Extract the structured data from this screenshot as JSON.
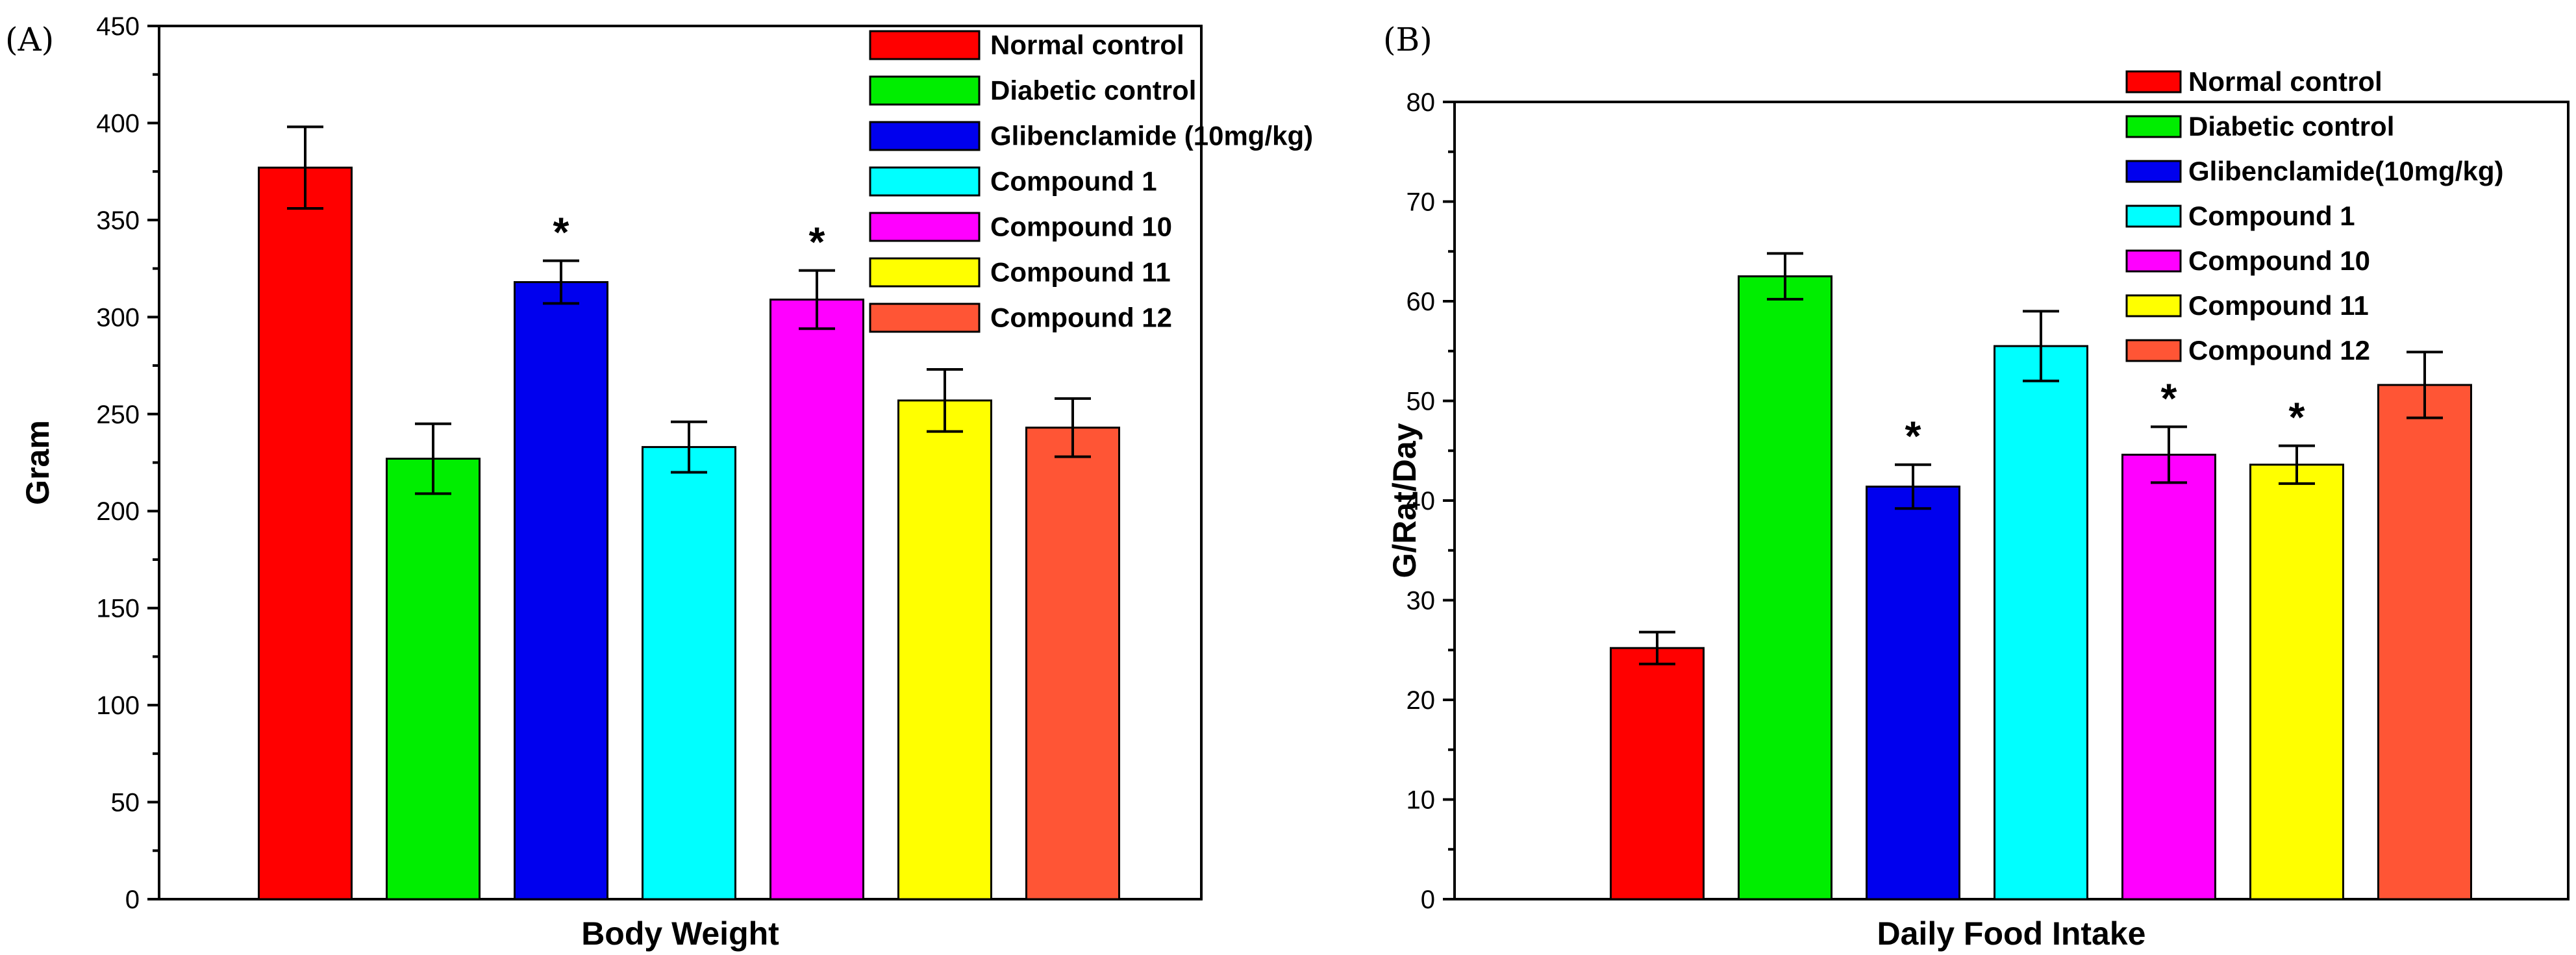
{
  "chart_data": [
    {
      "type": "bar",
      "panel_label": "(A)",
      "categories": [
        "Normal control",
        "Diabetic control",
        "Glibenclamide (10mg/kg)",
        "Compound 1",
        "Compound 10",
        "Compound 11",
        "Compound 12"
      ],
      "values": [
        377,
        227,
        318,
        233,
        309,
        257,
        243
      ],
      "errors": [
        21,
        18,
        11,
        13,
        15,
        16,
        15
      ],
      "significant": [
        false,
        false,
        true,
        false,
        true,
        false,
        false
      ],
      "significance_marker": "*",
      "colors": [
        "#ff0000",
        "#00ee00",
        "#0000ee",
        "#00ffff",
        "#ff00ff",
        "#ffff00",
        "#ff5535"
      ],
      "xlabel": "Body Weight",
      "ylabel": "Gram",
      "ylim": [
        0,
        450
      ],
      "yticks": [
        0,
        50,
        100,
        150,
        200,
        250,
        300,
        350,
        400,
        450
      ],
      "legend_position": "top-right",
      "grid": false
    },
    {
      "type": "bar",
      "panel_label": "(B)",
      "categories": [
        "Normal control",
        "Diabetic control",
        "Glibenclamide(10mg/kg)",
        "Compound 1",
        "Compound 10",
        "Compound 11",
        "Compound 12"
      ],
      "values": [
        25.2,
        62.5,
        41.4,
        55.5,
        44.6,
        43.6,
        51.6
      ],
      "errors": [
        1.6,
        2.3,
        2.2,
        3.5,
        2.8,
        1.9,
        3.3
      ],
      "significant": [
        false,
        false,
        true,
        false,
        true,
        true,
        false
      ],
      "significance_marker": "*",
      "colors": [
        "#ff0000",
        "#00ee00",
        "#0000ee",
        "#00ffff",
        "#ff00ff",
        "#ffff00",
        "#ff5535"
      ],
      "xlabel": "Daily Food Intake",
      "ylabel": "G/Rat/Day",
      "ylim": [
        0,
        80
      ],
      "yticks": [
        0,
        10,
        20,
        30,
        40,
        50,
        60,
        70,
        80
      ],
      "legend_position": "top-right",
      "grid": false
    }
  ]
}
